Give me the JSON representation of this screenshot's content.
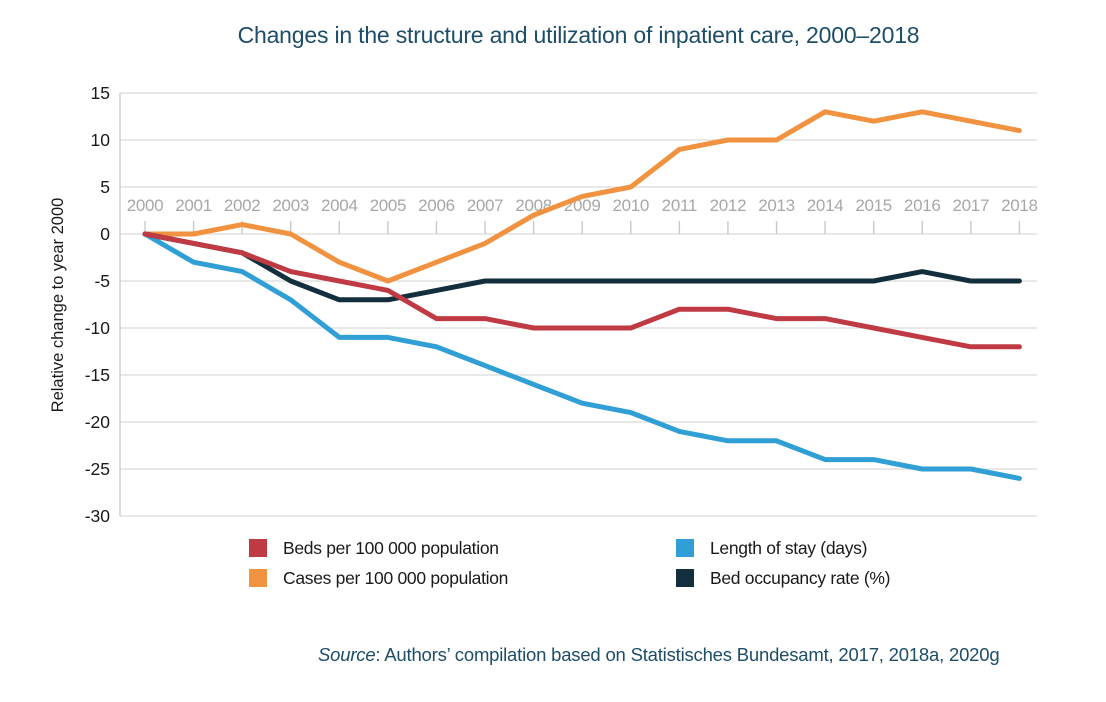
{
  "title": "Changes in the structure and utilization of inpatient care, 2000–2018",
  "colors": {
    "beds": "#bf3a43",
    "cases": "#f0923f",
    "los": "#2f9fd5",
    "occupancy": "#132f3d",
    "heading_text": "#1d4d68",
    "grid": "#dadada",
    "axis_line": "#c9c9c9",
    "tick": "#c9c9c9",
    "year_labels": "#a7a7a7",
    "value_labels": "#1a1a1a"
  },
  "chart_data": {
    "type": "line",
    "title": "Changes in the structure and utilization of inpatient care, 2000–2018",
    "xlabel": "",
    "ylabel": "Relative change to year 2000",
    "x": [
      2000,
      2001,
      2002,
      2003,
      2004,
      2005,
      2006,
      2007,
      2008,
      2009,
      2010,
      2011,
      2012,
      2013,
      2014,
      2015,
      2016,
      2017,
      2018
    ],
    "ylim": [
      -30,
      15
    ],
    "ytick_step": 5,
    "grid": true,
    "legend_position": "bottom",
    "series": [
      {
        "name": "Beds per 100 000 population",
        "color_key": "beds",
        "values": [
          0,
          -1,
          -2,
          -4,
          -5,
          -6,
          -9,
          -9,
          -10,
          -10,
          -10,
          -8,
          -8,
          -9,
          -9,
          -10,
          -11,
          -12,
          -12
        ]
      },
      {
        "name": "Cases per 100 000 population",
        "color_key": "cases",
        "values": [
          0,
          0,
          1,
          0,
          -3,
          -5,
          -3,
          -1,
          2,
          4,
          5,
          9,
          10,
          10,
          13,
          12,
          13,
          12,
          11
        ]
      },
      {
        "name": "Length of stay (days)",
        "color_key": "los",
        "values": [
          0,
          -3,
          -4,
          -7,
          -11,
          -11,
          -12,
          -14,
          -16,
          -18,
          -19,
          -21,
          -22,
          -22,
          -24,
          -24,
          -25,
          -25,
          -26
        ]
      },
      {
        "name": "Bed occupancy rate (%)",
        "color_key": "occupancy",
        "values": [
          0,
          -1,
          -2,
          -5,
          -7,
          -7,
          -6,
          -5,
          -5,
          -5,
          -5,
          -5,
          -5,
          -5,
          -5,
          -5,
          -4,
          -5,
          -5
        ]
      }
    ]
  },
  "source": {
    "prefix": "Source",
    "text": ": Authors’ compilation based on Statistisches Bundesamt, 2017, 2018a, 2020g"
  }
}
